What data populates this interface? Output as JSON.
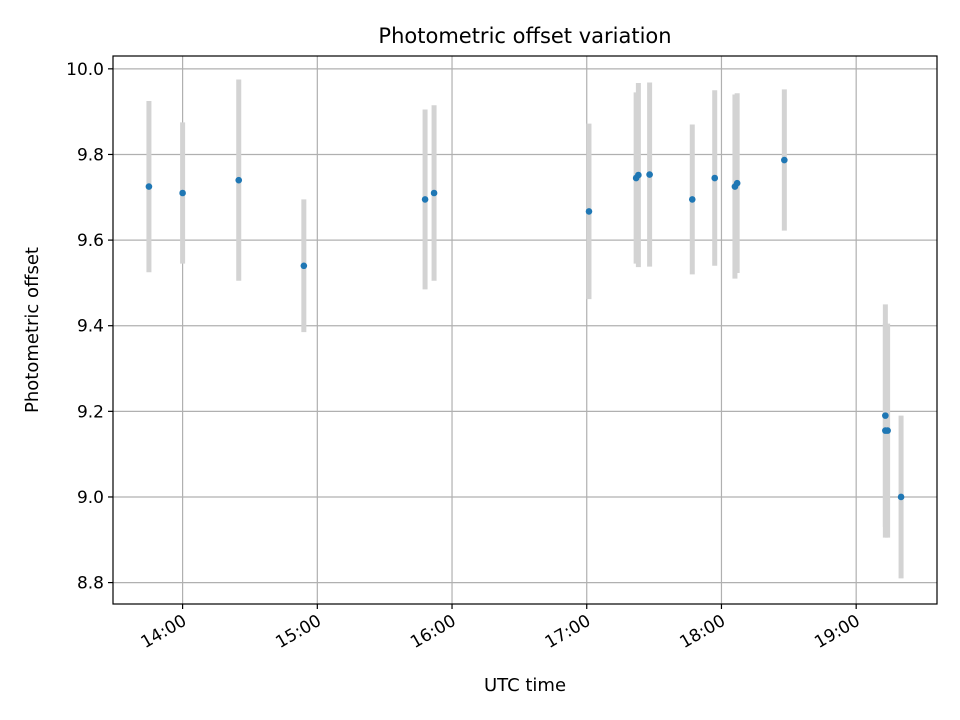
{
  "chart_data": {
    "type": "scatter",
    "title": "Photometric offset variation",
    "xlabel": "UTC time",
    "ylabel": "Photometric offset",
    "x_ticks": [
      "14:00",
      "15:00",
      "16:00",
      "17:00",
      "18:00",
      "19:00"
    ],
    "y_ticks": [
      "8.8",
      "9.0",
      "9.2",
      "9.4",
      "9.6",
      "9.8",
      "10.0"
    ],
    "xlim": [
      "13:29",
      "19:36"
    ],
    "ylim": [
      8.75,
      10.03
    ],
    "grid": true,
    "errorbar_color": "#d3d3d3",
    "point_color": "#1f77b4",
    "points": [
      {
        "x": "13:45",
        "y": 9.725,
        "err": 0.2
      },
      {
        "x": "14:00",
        "y": 9.71,
        "err": 0.165
      },
      {
        "x": "14:25",
        "y": 9.74,
        "err": 0.235
      },
      {
        "x": "14:54",
        "y": 9.54,
        "err": 0.155
      },
      {
        "x": "15:48",
        "y": 9.695,
        "err": 0.21
      },
      {
        "x": "15:52",
        "y": 9.71,
        "err": 0.205
      },
      {
        "x": "17:01",
        "y": 9.667,
        "err": 0.205
      },
      {
        "x": "17:22",
        "y": 9.745,
        "err": 0.2
      },
      {
        "x": "17:23",
        "y": 9.752,
        "err": 0.215
      },
      {
        "x": "17:28",
        "y": 9.753,
        "err": 0.215
      },
      {
        "x": "17:47",
        "y": 9.695,
        "err": 0.175
      },
      {
        "x": "17:57",
        "y": 9.745,
        "err": 0.205
      },
      {
        "x": "18:06",
        "y": 9.725,
        "err": 0.215
      },
      {
        "x": "18:07",
        "y": 9.733,
        "err": 0.21
      },
      {
        "x": "18:28",
        "y": 9.787,
        "err": 0.165
      },
      {
        "x": "19:13",
        "y": 9.19,
        "err": 0.26
      },
      {
        "x": "19:13",
        "y": 9.155,
        "err": 0.25
      },
      {
        "x": "19:14",
        "y": 9.155,
        "err": 0.25
      },
      {
        "x": "19:20",
        "y": 9.0,
        "err": 0.19
      }
    ]
  }
}
